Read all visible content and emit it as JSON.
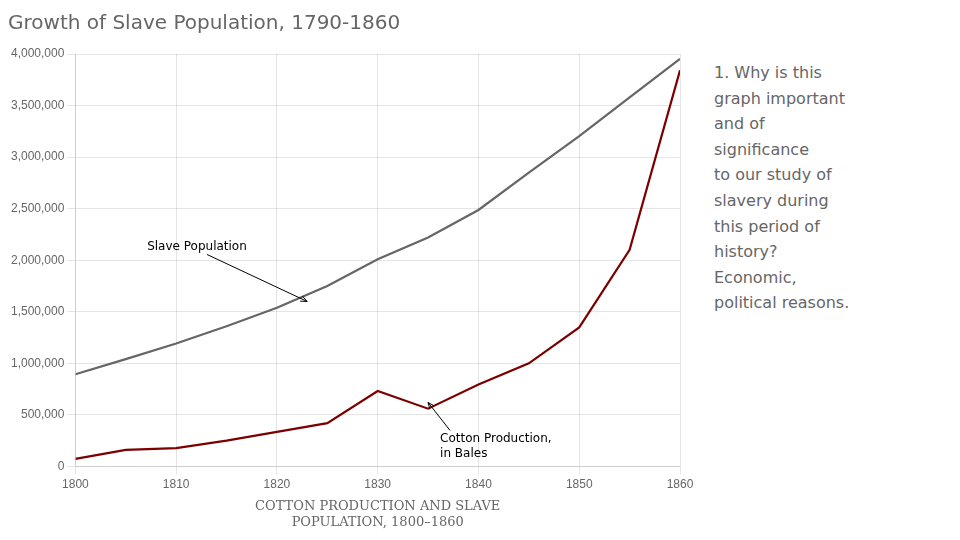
{
  "chart_data": {
    "type": "line",
    "title": "Growth of Slave Population, 1790-1860",
    "xlabel": "COTTON PRODUCTION AND SLAVE\nPOPULATION, 1800–1860",
    "x": [
      1800,
      1805,
      1810,
      1815,
      1820,
      1825,
      1830,
      1835,
      1840,
      1845,
      1850,
      1855,
      1860
    ],
    "series": [
      {
        "color": "#666666",
        "values": [
          893602,
          1040000,
          1191362,
          1360000,
          1538022,
          1750000,
          2009043,
          2220000,
          2487355,
          2850000,
          3204313,
          3580000,
          3953760
        ]
      },
      {
        "color": "#7B0000",
        "values": [
          73145,
          160000,
          177638,
          250000,
          334378,
          420000,
          731452,
          560000,
          793840,
          1000000,
          1348640,
          2100000,
          3841416
        ]
      }
    ],
    "xlim": [
      1800,
      1860
    ],
    "xticks": [
      1800,
      1810,
      1820,
      1830,
      1840,
      1850,
      1860
    ],
    "ylim": [
      0,
      4000000
    ],
    "yticks": [
      0,
      {
        "value": 500000,
        "label": "500,000"
      },
      {
        "value": 1000000,
        "label": "1,000,000"
      },
      {
        "value": 1500000,
        "label": "1,500,000"
      },
      {
        "value": 2000000,
        "label": "2,000,000"
      },
      {
        "value": 2500000,
        "label": "2,500,000"
      },
      {
        "value": 3000000,
        "label": "3,000,000"
      },
      {
        "value": 3500000,
        "label": "3,500,000"
      },
      {
        "value": 4000000,
        "label": "4,000,000"
      }
    ],
    "grid": true,
    "annotations": [
      {
        "text": "Slave Population",
        "x": 1823,
        "y": 1600000
      },
      {
        "text": "Cotton Production,\nin Bales",
        "x": 1835,
        "y": 620000
      },
      {
        "text": "1. Why is this\ngraph important\nand of\nsignificance\nto our study of\nslavery during\nthis period of\nhistory?\nEconomic,\npolitical reasons."
      }
    ]
  }
}
